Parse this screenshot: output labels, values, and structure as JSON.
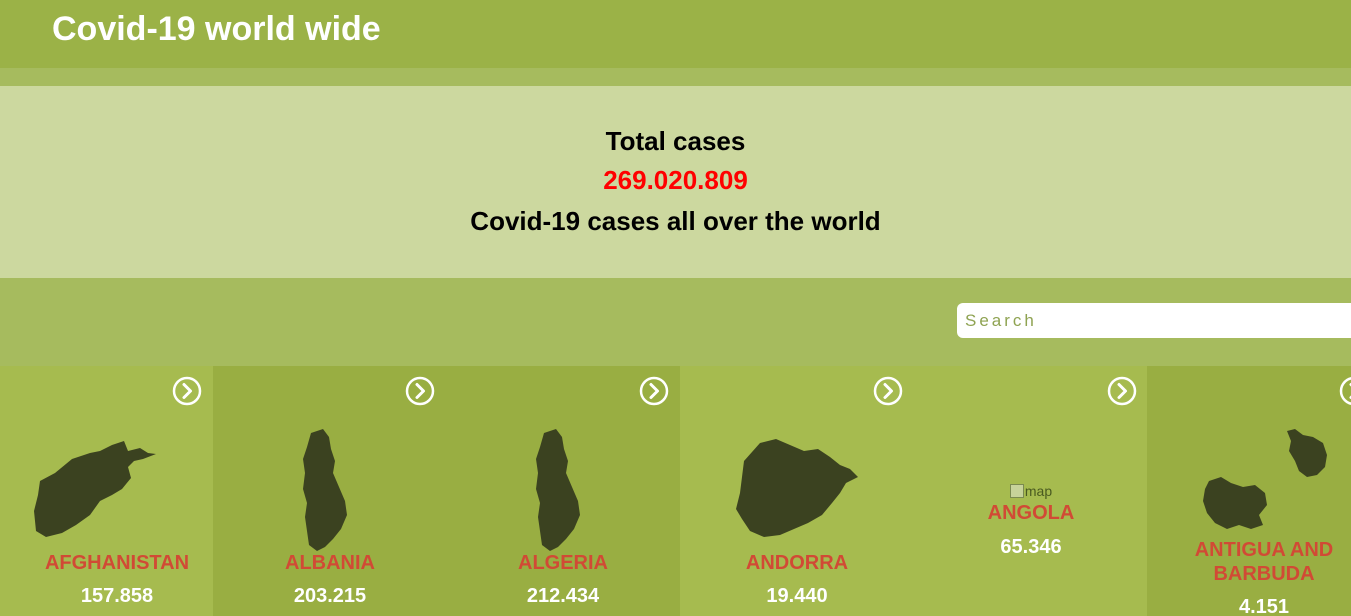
{
  "header": {
    "title": "Covid-19 world wide"
  },
  "summary": {
    "label": "Total cases",
    "total": "269.020.809",
    "subtitle": "Covid-19 cases all over the world"
  },
  "search": {
    "placeholder": "Search",
    "value": ""
  },
  "colors": {
    "header_bg": "#9bb247",
    "page_bg": "#a6bb5e",
    "hero_bg": "#ccd89f",
    "total_red": "#ff0000",
    "country_name": "#d14a35",
    "map_fill": "#3b4220"
  },
  "icons": {
    "card_arrow": "chevron-right-circle-icon"
  },
  "countries": [
    {
      "name": "AFGHANISTAN",
      "cases": "157.858"
    },
    {
      "name": "ALBANIA",
      "cases": "203.215"
    },
    {
      "name": "ALGERIA",
      "cases": "212.434"
    },
    {
      "name": "ANDORRA",
      "cases": "19.440"
    },
    {
      "name": "ANGOLA",
      "cases": "65.346",
      "map_alt": "map"
    },
    {
      "name_line1": "ANTIGUA AND",
      "name_line2": "BARBUDA",
      "cases": "4.151"
    }
  ]
}
